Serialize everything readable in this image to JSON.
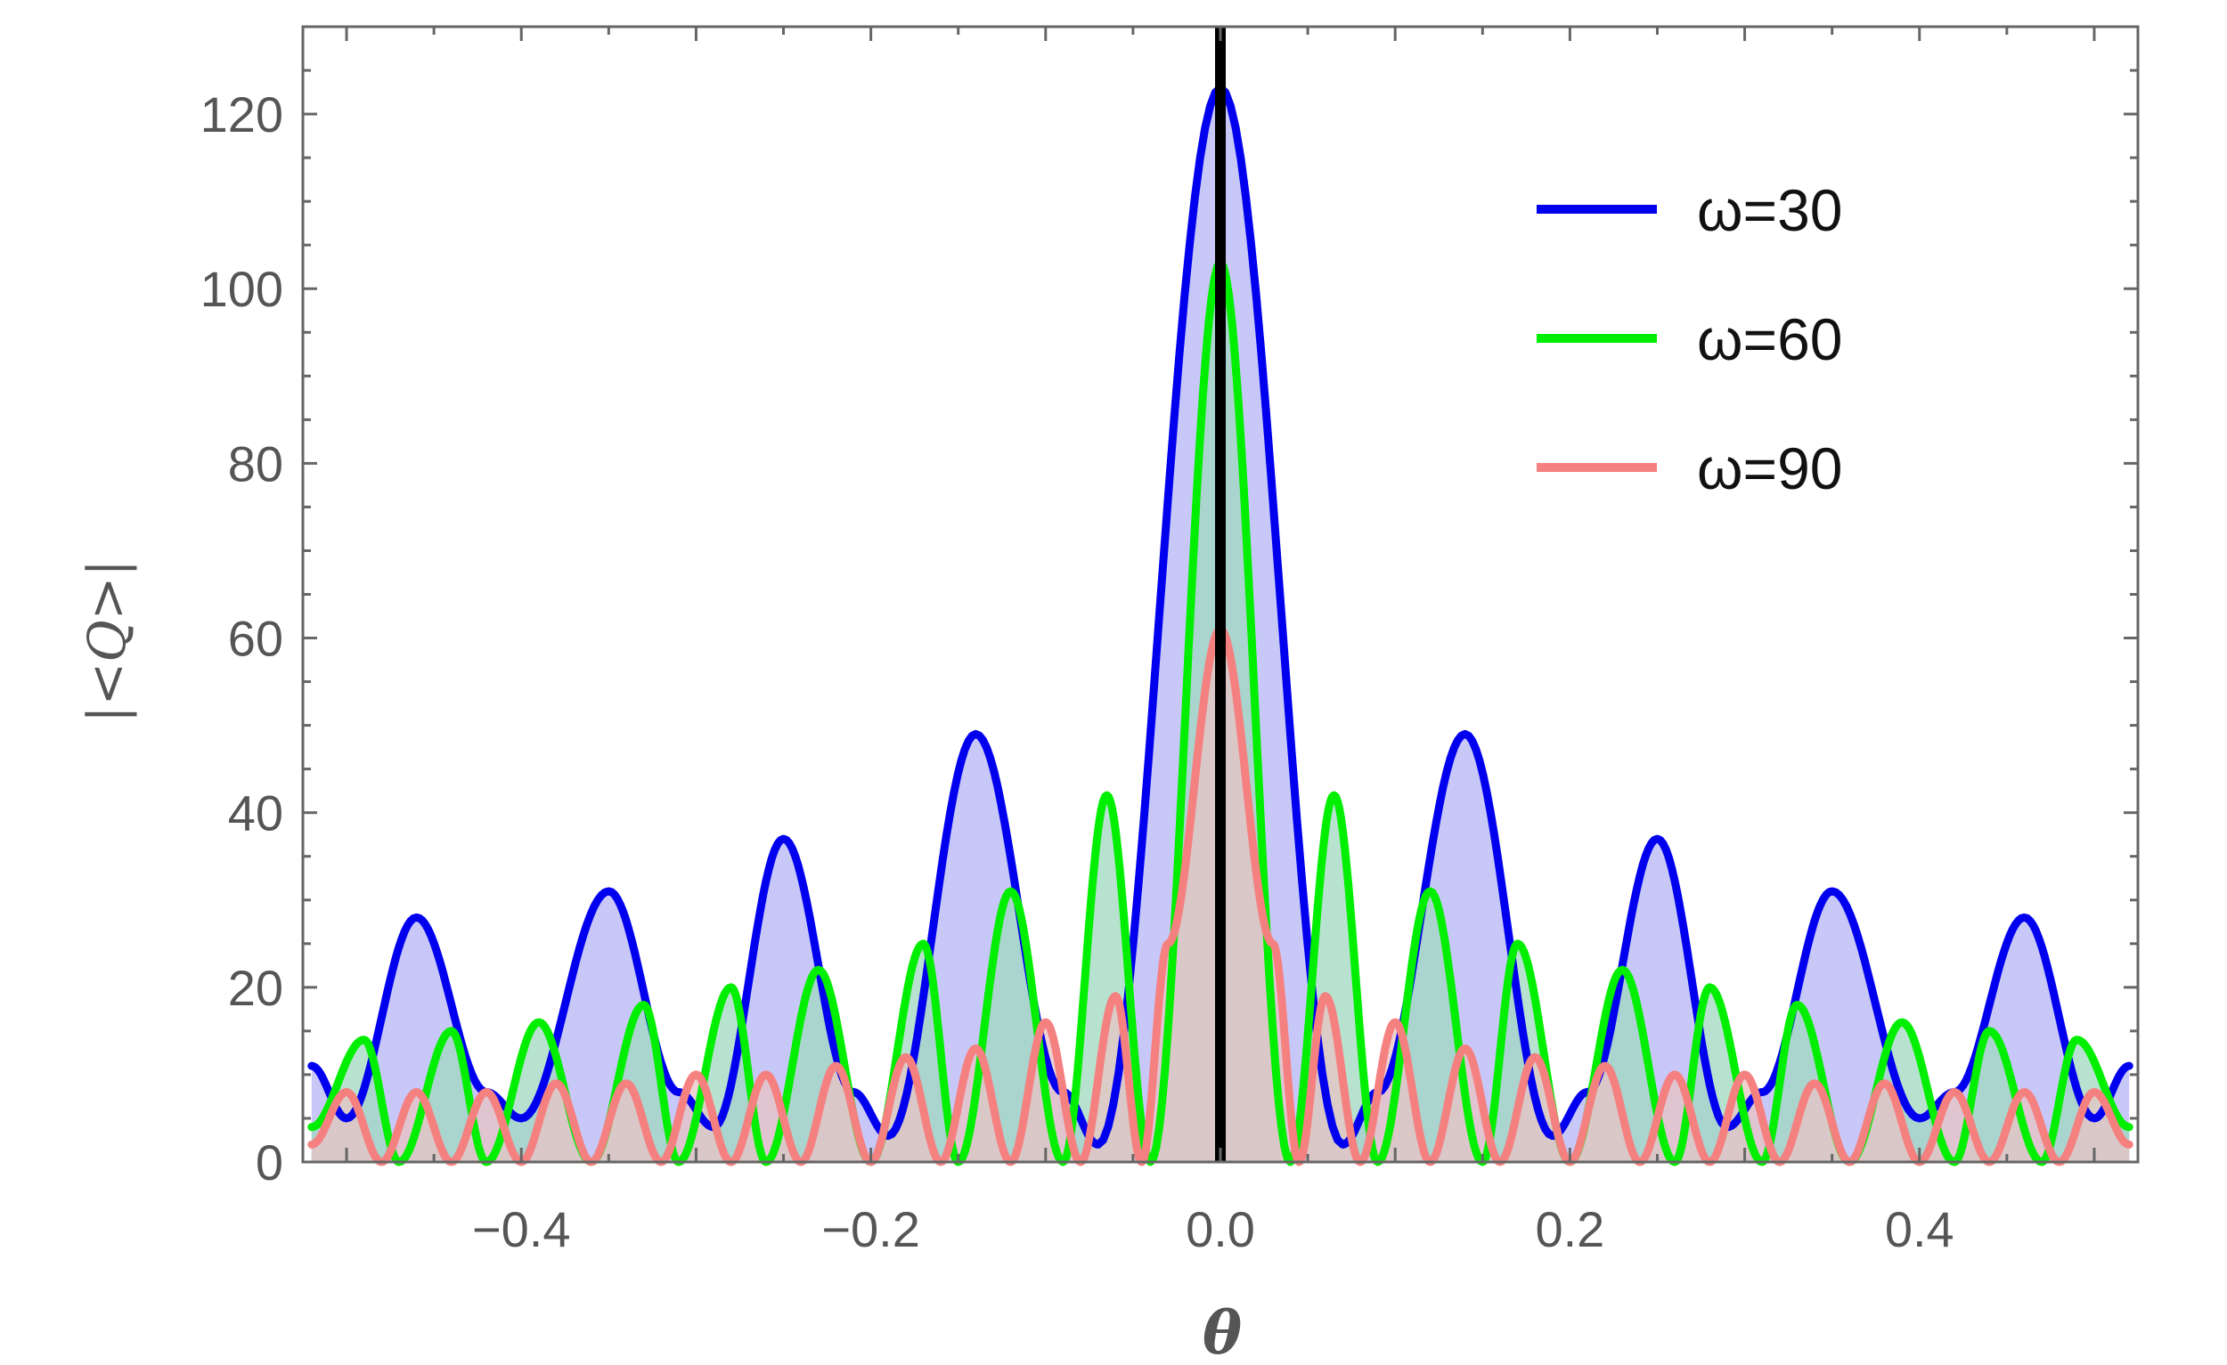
{
  "chart_data": {
    "type": "area",
    "title": "",
    "xlabel": "θ",
    "ylabel": "|<Q>|",
    "xlim": [
      -0.525,
      0.525
    ],
    "ylim": [
      0,
      130
    ],
    "x_ticks": [
      -0.4,
      -0.2,
      0.0,
      0.2,
      0.4
    ],
    "x_tick_labels": [
      "−0.4",
      "−0.2",
      "0.0",
      "0.2",
      "0.4"
    ],
    "y_ticks": [
      0,
      20,
      40,
      60,
      80,
      100,
      120
    ],
    "y_tick_labels": [
      "0",
      "20",
      "40",
      "60",
      "80",
      "100",
      "120"
    ],
    "grid": false,
    "legend_position": "top-right",
    "vertical_line": {
      "x": 0.0,
      "color": "#000000"
    },
    "series": [
      {
        "name": "ω=30",
        "omega": 30,
        "color": "#0000ee",
        "fill": "#c8c8f8",
        "peak": 123,
        "x": [
          -0.52,
          -0.5,
          -0.46,
          -0.42,
          -0.4,
          -0.35,
          -0.31,
          -0.29,
          -0.25,
          -0.21,
          -0.19,
          -0.14,
          -0.09,
          -0.07,
          0.0,
          0.07,
          0.09,
          0.14,
          0.19,
          0.21,
          0.25,
          0.29,
          0.31,
          0.35,
          0.4,
          0.42,
          0.46,
          0.5,
          0.52
        ],
        "y": [
          11,
          5,
          28,
          8,
          5,
          31,
          8,
          4,
          37,
          8,
          3,
          49,
          8,
          2,
          123,
          2,
          8,
          49,
          3,
          8,
          37,
          4,
          8,
          31,
          5,
          8,
          28,
          5,
          11
        ]
      },
      {
        "name": "ω=60",
        "omega": 60,
        "color": "#00ee00",
        "fill": "#a0d8c0",
        "peak": 103,
        "x": [
          -0.52,
          -0.49,
          -0.47,
          -0.44,
          -0.42,
          -0.39,
          -0.36,
          -0.33,
          -0.31,
          -0.28,
          -0.26,
          -0.23,
          -0.2,
          -0.17,
          -0.15,
          -0.12,
          -0.09,
          -0.065,
          -0.04,
          0.0,
          0.04,
          0.065,
          0.09,
          0.12,
          0.15,
          0.17,
          0.2,
          0.23,
          0.26,
          0.28,
          0.31,
          0.33,
          0.36,
          0.39,
          0.42,
          0.44,
          0.47,
          0.49,
          0.52
        ],
        "y": [
          4,
          14,
          0,
          15,
          0,
          16,
          0,
          18,
          0,
          20,
          0,
          22,
          0,
          25,
          0,
          31,
          0,
          42,
          0,
          103,
          0,
          42,
          0,
          31,
          0,
          25,
          0,
          22,
          0,
          20,
          0,
          18,
          0,
          16,
          0,
          15,
          0,
          14,
          4
        ]
      },
      {
        "name": "ω=90",
        "omega": 90,
        "color": "#f58080",
        "fill": "#e8c4c4",
        "peak": 61,
        "x": [
          -0.52,
          -0.5,
          -0.48,
          -0.46,
          -0.44,
          -0.42,
          -0.4,
          -0.38,
          -0.36,
          -0.34,
          -0.32,
          -0.3,
          -0.28,
          -0.26,
          -0.24,
          -0.22,
          -0.2,
          -0.18,
          -0.16,
          -0.14,
          -0.12,
          -0.1,
          -0.08,
          -0.06,
          -0.045,
          -0.03,
          0.0,
          0.03,
          0.045,
          0.06,
          0.08,
          0.1,
          0.12,
          0.14,
          0.16,
          0.18,
          0.2,
          0.22,
          0.24,
          0.26,
          0.28,
          0.3,
          0.32,
          0.34,
          0.36,
          0.38,
          0.4,
          0.42,
          0.44,
          0.46,
          0.48,
          0.5,
          0.52
        ],
        "y": [
          2,
          8,
          0,
          8,
          0,
          8,
          0,
          9,
          0,
          9,
          0,
          10,
          0,
          10,
          0,
          11,
          0,
          12,
          0,
          13,
          0,
          16,
          0,
          19,
          0,
          25,
          61,
          25,
          0,
          19,
          0,
          16,
          0,
          13,
          0,
          12,
          0,
          11,
          0,
          10,
          0,
          10,
          0,
          9,
          0,
          9,
          0,
          8,
          0,
          8,
          0,
          8,
          2
        ]
      }
    ]
  }
}
